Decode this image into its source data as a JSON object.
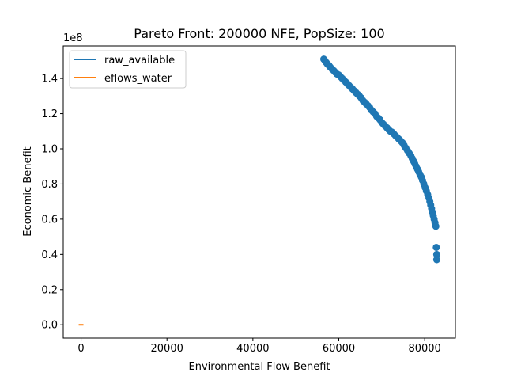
{
  "chart_data": {
    "type": "scatter",
    "title": "Pareto Front: 200000 NFE, PopSize: 100",
    "xlabel": "Environmental Flow Benefit",
    "ylabel": "Economic Benefit",
    "y_offset_label": "1e8",
    "xlim": [
      -4150,
      87150
    ],
    "ylim": [
      -0.0755,
      1.585
    ],
    "x_ticks": [
      0,
      20000,
      40000,
      60000,
      80000
    ],
    "x_tick_labels": [
      "0",
      "20000",
      "40000",
      "60000",
      "80000"
    ],
    "y_ticks": [
      0.0,
      0.2,
      0.4,
      0.6,
      0.8,
      1.0,
      1.2,
      1.4
    ],
    "y_tick_labels": [
      "0.0",
      "0.2",
      "0.4",
      "0.6",
      "0.8",
      "1.0",
      "1.2",
      "1.4"
    ],
    "grid": false,
    "legend_position": "upper-left",
    "series": [
      {
        "name": "raw_available",
        "color": "#1f77b4",
        "marker": "circle",
        "points": [
          [
            56500,
            1.51
          ],
          [
            56800,
            1.5
          ],
          [
            57100,
            1.49
          ],
          [
            57400,
            1.48
          ],
          [
            57700,
            1.475
          ],
          [
            58000,
            1.465
          ],
          [
            58400,
            1.455
          ],
          [
            58800,
            1.445
          ],
          [
            59200,
            1.435
          ],
          [
            59600,
            1.425
          ],
          [
            60000,
            1.42
          ],
          [
            60400,
            1.41
          ],
          [
            60800,
            1.4
          ],
          [
            61200,
            1.39
          ],
          [
            61600,
            1.38
          ],
          [
            62000,
            1.37
          ],
          [
            62400,
            1.36
          ],
          [
            62800,
            1.35
          ],
          [
            63200,
            1.34
          ],
          [
            63600,
            1.33
          ],
          [
            64000,
            1.32
          ],
          [
            64400,
            1.31
          ],
          [
            64800,
            1.3
          ],
          [
            65200,
            1.29
          ],
          [
            65600,
            1.275
          ],
          [
            66000,
            1.265
          ],
          [
            66400,
            1.255
          ],
          [
            66800,
            1.245
          ],
          [
            67200,
            1.235
          ],
          [
            67600,
            1.22
          ],
          [
            68000,
            1.21
          ],
          [
            68400,
            1.2
          ],
          [
            68800,
            1.185
          ],
          [
            69200,
            1.175
          ],
          [
            69600,
            1.165
          ],
          [
            70000,
            1.15
          ],
          [
            70400,
            1.14
          ],
          [
            70800,
            1.13
          ],
          [
            71200,
            1.12
          ],
          [
            71600,
            1.11
          ],
          [
            72000,
            1.1
          ],
          [
            72400,
            1.095
          ],
          [
            72800,
            1.085
          ],
          [
            73200,
            1.075
          ],
          [
            73600,
            1.065
          ],
          [
            74000,
            1.055
          ],
          [
            74400,
            1.045
          ],
          [
            74800,
            1.035
          ],
          [
            75200,
            1.02
          ],
          [
            75600,
            1.005
          ],
          [
            76000,
            0.99
          ],
          [
            76400,
            0.975
          ],
          [
            76800,
            0.96
          ],
          [
            77100,
            0.945
          ],
          [
            77400,
            0.93
          ],
          [
            77700,
            0.915
          ],
          [
            78000,
            0.9
          ],
          [
            78300,
            0.885
          ],
          [
            78600,
            0.87
          ],
          [
            78900,
            0.855
          ],
          [
            79200,
            0.84
          ],
          [
            79500,
            0.82
          ],
          [
            79800,
            0.8
          ],
          [
            80100,
            0.78
          ],
          [
            80400,
            0.76
          ],
          [
            80700,
            0.74
          ],
          [
            81000,
            0.72
          ],
          [
            81200,
            0.7
          ],
          [
            81400,
            0.68
          ],
          [
            81600,
            0.66
          ],
          [
            81800,
            0.64
          ],
          [
            82000,
            0.62
          ],
          [
            82200,
            0.6
          ],
          [
            82400,
            0.58
          ],
          [
            82600,
            0.56
          ],
          [
            82700,
            0.44
          ],
          [
            82800,
            0.4
          ],
          [
            82800,
            0.37
          ]
        ]
      },
      {
        "name": "eflows_water",
        "color": "#ff7f0e",
        "marker": "line",
        "points": [
          [
            0,
            0.0
          ]
        ]
      }
    ]
  }
}
